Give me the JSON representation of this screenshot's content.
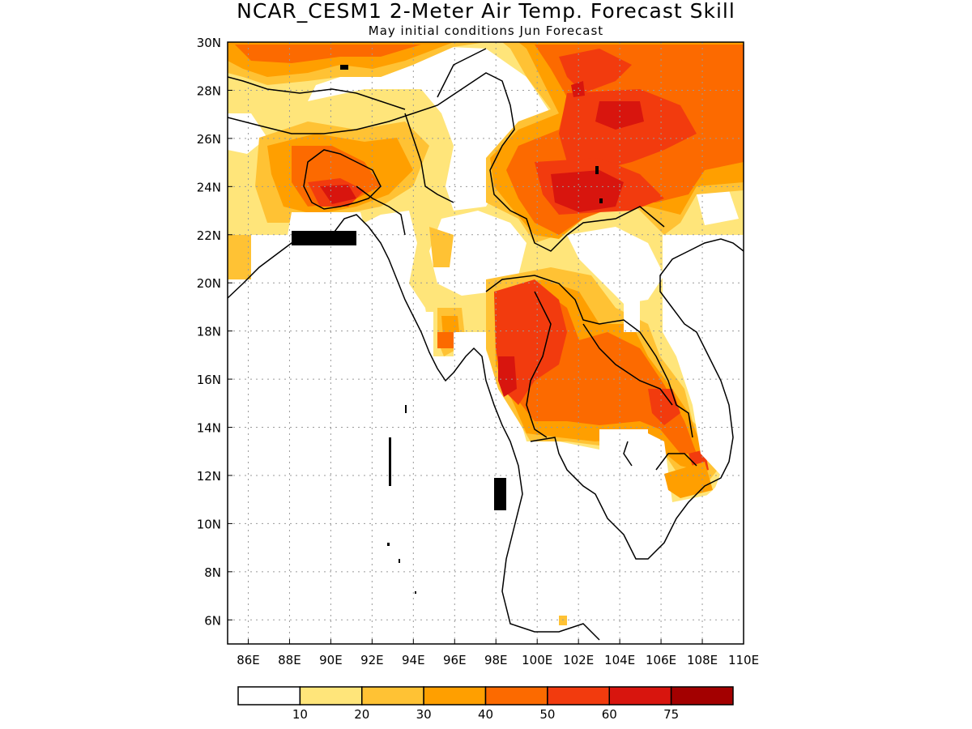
{
  "title": "NCAR_CESM1 2-Meter Air Temp. Forecast Skill",
  "subtitle": "May initial conditions  Jun Forecast",
  "map": {
    "lon_range": [
      85,
      110
    ],
    "lat_range": [
      5,
      30
    ],
    "lon_ticks": [
      "86E",
      "88E",
      "90E",
      "92E",
      "94E",
      "96E",
      "98E",
      "100E",
      "102E",
      "104E",
      "106E",
      "108E",
      "110E"
    ],
    "lat_ticks": [
      "30N",
      "28N",
      "26N",
      "24N",
      "22N",
      "20N",
      "18N",
      "16N",
      "14N",
      "12N",
      "10N",
      "8N",
      "6N"
    ],
    "grid": "dotted"
  },
  "colorbar": {
    "boundaries": [
      "10",
      "20",
      "30",
      "40",
      "50",
      "60",
      "75"
    ],
    "colors": [
      "#ffffff",
      "#ffe57a",
      "#ffc234",
      "#ff9f00",
      "#fc6a00",
      "#f23b0e",
      "#d8150e",
      "#a30000"
    ]
  },
  "legend_colors": {
    "skill_10_20": "#ffe57a",
    "skill_20_30": "#ffc234",
    "skill_30_40": "#ff9f00",
    "skill_40_50": "#fc6a00",
    "skill_50_60": "#f23b0e",
    "skill_60_75": "#d8150e",
    "skill_75_plus": "#a30000"
  }
}
